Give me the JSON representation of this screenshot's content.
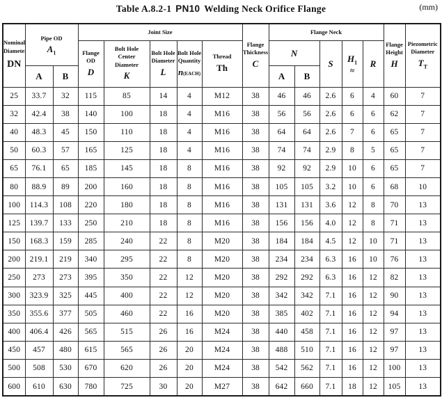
{
  "title": {
    "table_label": "Table A.8.2-1",
    "spec_code": "PN10",
    "name": "Welding Neck Orifice Flange",
    "unit": "(mm)"
  },
  "header": {
    "nominal": {
      "line1": "Nominal",
      "line2": "Diameter",
      "symbol": "DN"
    },
    "pipe_od": {
      "line1": "Pipe OD",
      "symbol": "A",
      "sub": "1"
    },
    "joint_size": "Joint Size",
    "flange_od": {
      "line1": "Flange OD",
      "symbol": "D"
    },
    "bolt_center": {
      "line1": "Bolt Hole",
      "line2": "Center",
      "line3": "Diameter",
      "symbol": "K"
    },
    "bolt_dia": {
      "line1": "Bolt Hole",
      "line2": "Diameter",
      "symbol": "L"
    },
    "bolt_qty": {
      "line1": "Bolt Hole",
      "line2": "Quantity",
      "symbol": "n",
      "suffix": "(EACH)"
    },
    "thread": {
      "line1": "Thread",
      "symbol": "Th"
    },
    "flange_thickness": {
      "line1": "Flange",
      "line2": "Thickness",
      "symbol": "C"
    },
    "flange_neck": "Flange Neck",
    "neck_n": {
      "symbol": "N"
    },
    "col_a": "A",
    "col_b": "B",
    "s": {
      "symbol": "S"
    },
    "h1": {
      "symbol": "H",
      "sub": "1",
      "approx": "≈"
    },
    "r": {
      "symbol": "R"
    },
    "flange_height": {
      "line1": "Flange",
      "line2": "Height",
      "symbol": "H"
    },
    "piezometric": {
      "line1": "Piezometric",
      "line2": "Diameter",
      "symbol": "T",
      "sub": "T"
    }
  },
  "columns": [
    "DN",
    "A",
    "B",
    "D",
    "K",
    "L",
    "n",
    "Th",
    "C",
    "N-A",
    "N-B",
    "S",
    "H1",
    "R",
    "H",
    "TT"
  ],
  "rows": [
    [
      "25",
      "33.7",
      "32",
      "115",
      "85",
      "14",
      "4",
      "M12",
      "38",
      "46",
      "46",
      "2.6",
      "6",
      "4",
      "60",
      "7"
    ],
    [
      "32",
      "42.4",
      "38",
      "140",
      "100",
      "18",
      "4",
      "M16",
      "38",
      "56",
      "56",
      "2.6",
      "6",
      "6",
      "62",
      "7"
    ],
    [
      "40",
      "48.3",
      "45",
      "150",
      "110",
      "18",
      "4",
      "M16",
      "38",
      "64",
      "64",
      "2.6",
      "7",
      "6",
      "65",
      "7"
    ],
    [
      "50",
      "60.3",
      "57",
      "165",
      "125",
      "18",
      "4",
      "M16",
      "38",
      "74",
      "74",
      "2.9",
      "8",
      "5",
      "65",
      "7"
    ],
    [
      "65",
      "76.1",
      "65",
      "185",
      "145",
      "18",
      "8",
      "M16",
      "38",
      "92",
      "92",
      "2.9",
      "10",
      "6",
      "65",
      "7"
    ],
    [
      "80",
      "88.9",
      "89",
      "200",
      "160",
      "18",
      "8",
      "M16",
      "38",
      "105",
      "105",
      "3.2",
      "10",
      "6",
      "68",
      "10"
    ],
    [
      "100",
      "114.3",
      "108",
      "220",
      "180",
      "18",
      "8",
      "M16",
      "38",
      "131",
      "131",
      "3.6",
      "12",
      "8",
      "70",
      "13"
    ],
    [
      "125",
      "139.7",
      "133",
      "250",
      "210",
      "18",
      "8",
      "M16",
      "38",
      "156",
      "156",
      "4.0",
      "12",
      "8",
      "71",
      "13"
    ],
    [
      "150",
      "168.3",
      "159",
      "285",
      "240",
      "22",
      "8",
      "M20",
      "38",
      "184",
      "184",
      "4.5",
      "12",
      "10",
      "71",
      "13"
    ],
    [
      "200",
      "219.1",
      "219",
      "340",
      "295",
      "22",
      "8",
      "M20",
      "38",
      "234",
      "234",
      "6.3",
      "16",
      "10",
      "76",
      "13"
    ],
    [
      "250",
      "273",
      "273",
      "395",
      "350",
      "22",
      "12",
      "M20",
      "38",
      "292",
      "292",
      "6.3",
      "16",
      "12",
      "82",
      "13"
    ],
    [
      "300",
      "323.9",
      "325",
      "445",
      "400",
      "22",
      "12",
      "M20",
      "38",
      "342",
      "342",
      "7.1",
      "16",
      "12",
      "90",
      "13"
    ],
    [
      "350",
      "355.6",
      "377",
      "505",
      "460",
      "22",
      "16",
      "M20",
      "38",
      "385",
      "402",
      "7.1",
      "16",
      "12",
      "94",
      "13"
    ],
    [
      "400",
      "406.4",
      "426",
      "565",
      "515",
      "26",
      "16",
      "M24",
      "38",
      "440",
      "458",
      "7.1",
      "16",
      "12",
      "97",
      "13"
    ],
    [
      "450",
      "457",
      "480",
      "615",
      "565",
      "26",
      "20",
      "M24",
      "38",
      "488",
      "510",
      "7.1",
      "16",
      "12",
      "97",
      "13"
    ],
    [
      "500",
      "508",
      "530",
      "670",
      "620",
      "26",
      "20",
      "M24",
      "38",
      "542",
      "562",
      "7.1",
      "16",
      "12",
      "100",
      "13"
    ],
    [
      "600",
      "610",
      "630",
      "780",
      "725",
      "30",
      "20",
      "M27",
      "38",
      "642",
      "660",
      "7.1",
      "18",
      "12",
      "105",
      "13"
    ]
  ]
}
